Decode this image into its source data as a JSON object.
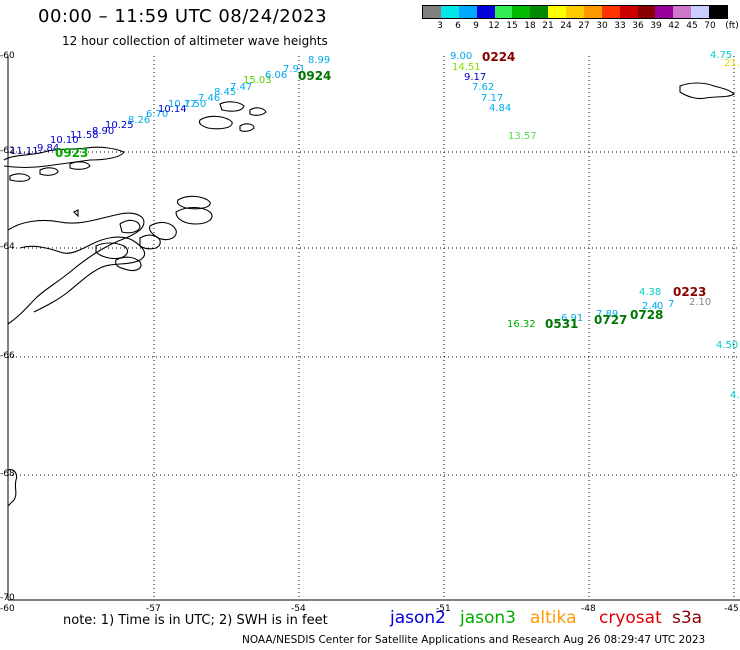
{
  "header": {
    "title": "00:00 – 11:59 UTC 08/24/2023",
    "subtitle": "12 hour collection of altimeter wave heights"
  },
  "colorbar": {
    "colors": [
      "#7f7f7f",
      "#00e5e5",
      "#00a8ff",
      "#0000dd",
      "#33ee55",
      "#00bb00",
      "#008800",
      "#ffff00",
      "#ffcc00",
      "#ff9900",
      "#ff3300",
      "#cc0000",
      "#880000",
      "#990099",
      "#cc77cc",
      "#ccccff",
      "#000000"
    ],
    "labels": [
      "3",
      "6",
      "9",
      "12",
      "15",
      "18",
      "21",
      "24",
      "27",
      "30",
      "33",
      "36",
      "39",
      "42",
      "45",
      "70",
      "(ft)"
    ]
  },
  "axes": {
    "lon_labels": [
      "-60",
      "-57",
      "-54",
      "-51",
      "-48",
      "-45"
    ],
    "lat_labels": [
      "-60",
      "-62",
      "-64",
      "-66",
      "-68",
      "-70"
    ]
  },
  "tracks": [
    {
      "color": "#000099",
      "text": "11.11"
    },
    {
      "color": "#0000cc",
      "text": "9.84"
    },
    {
      "color": "#00aa00",
      "text": "0923"
    },
    {
      "color": "#0000cc",
      "text": "10.10"
    },
    {
      "color": "#0000cc",
      "text": "11.58"
    },
    {
      "color": "#0000cc",
      "text": "8.90"
    },
    {
      "color": "#0000cc",
      "text": "10.25"
    },
    {
      "color": "#00aaee",
      "text": "8.26"
    },
    {
      "color": "#00aaee",
      "text": "6.70"
    },
    {
      "color": "#0000cc",
      "text": "10.14"
    },
    {
      "color": "#00aaee",
      "text": "10.17"
    },
    {
      "color": "#00aaee",
      "text": "7.50"
    },
    {
      "color": "#00aaee",
      "text": "7.46"
    },
    {
      "color": "#00aaee",
      "text": "8.45"
    },
    {
      "color": "#00aaee",
      "text": "7.47"
    },
    {
      "color": "#55cc00",
      "text": "15.03"
    },
    {
      "color": "#00aaee",
      "text": "6.06"
    },
    {
      "color": "#00aaee",
      "text": "7.91"
    },
    {
      "color": "#00aaee",
      "text": "8.99"
    },
    {
      "color": "#007700",
      "text": "0924"
    },
    {
      "color": "#00aaee",
      "text": "9.00"
    },
    {
      "color": "#880000",
      "text": "0224"
    },
    {
      "color": "#88dd00",
      "text": "14.51"
    },
    {
      "color": "#0000cc",
      "text": "9.17"
    },
    {
      "color": "#00aaee",
      "text": "7.62"
    },
    {
      "color": "#00aaee",
      "text": "7.17"
    },
    {
      "color": "#00aaee",
      "text": "4.84"
    },
    {
      "color": "#55dd55",
      "text": "13.57"
    },
    {
      "color": "#00cccc",
      "text": "4.75"
    },
    {
      "color": "#dddd00",
      "text": "21."
    },
    {
      "color": "#00cccc",
      "text": "4.38"
    },
    {
      "color": "#880000",
      "text": "0223"
    },
    {
      "color": "#888888",
      "text": "2.10"
    },
    {
      "color": "#00aaee",
      "text": "2.4"
    },
    {
      "color": "#00aaee",
      "text": "0"
    },
    {
      "color": "#00aaee",
      "text": "7"
    },
    {
      "color": "#007700",
      "text": "0728"
    },
    {
      "color": "#00aaee",
      "text": "7.89"
    },
    {
      "color": "#007700",
      "text": "0727"
    },
    {
      "color": "#00aaee",
      "text": "6.91"
    },
    {
      "color": "#007700",
      "text": "0531"
    },
    {
      "color": "#00aa00",
      "text": "16.32"
    },
    {
      "color": "#00cccc",
      "text": "4.50"
    },
    {
      "color": "#00cccc",
      "text": "4."
    }
  ],
  "note": "note: 1) Time is in UTC; 2) SWH is in feet",
  "satellites": [
    {
      "name": "jason2",
      "color": "#0000dd"
    },
    {
      "name": "jason3",
      "color": "#00aa00"
    },
    {
      "name": "altika",
      "color": "#ff9900"
    },
    {
      "name": "cryosat",
      "color": "#dd0000"
    },
    {
      "name": "s3a",
      "color": "#880000"
    }
  ],
  "footer": "NOAA/NESDIS Center for Satellite Applications and Research    Aug 26 08:29:47 UTC 2023"
}
